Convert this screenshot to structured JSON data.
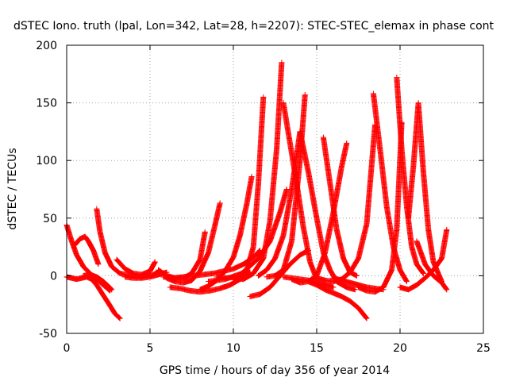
{
  "chart_data": {
    "type": "scatter",
    "title": "dSTEC Iono. truth (lpal, Lon=342, Lat=28, h=2207): STEC-STEC_elemax in phase cont",
    "xlabel": "GPS time / hours of day 356 of year 2014",
    "ylabel": "dSTEC  / TECUs",
    "xlim": [
      0,
      25
    ],
    "ylim": [
      -50,
      200
    ],
    "xticks": [
      "0",
      "5",
      "10",
      "15",
      "20",
      "25"
    ],
    "yticks": [
      "-50",
      "0",
      "50",
      "100",
      "150",
      "200"
    ],
    "grid": true,
    "marker": "+",
    "color": "#ff0000",
    "series": [
      {
        "x": [
          0,
          0.3,
          0.6,
          1.0,
          1.4,
          1.8,
          2.2,
          2.6
        ],
        "y": [
          44,
          30,
          18,
          8,
          2,
          -3,
          -8,
          -13
        ]
      },
      {
        "x": [
          0,
          0.3,
          0.6,
          0.9,
          1.2,
          1.5,
          1.8,
          2.2,
          2.6,
          2.9,
          3.2
        ],
        "y": [
          -1,
          -2,
          -3,
          -2,
          -1,
          -3,
          -8,
          -17,
          -26,
          -33,
          -37
        ]
      },
      {
        "x": [
          0.5,
          0.8,
          1.1,
          1.3,
          1.6,
          1.9
        ],
        "y": [
          27,
          32,
          34,
          30,
          22,
          10
        ]
      },
      {
        "x": [
          1.8,
          2.0,
          2.3,
          2.7,
          3.2,
          3.8,
          4.5,
          5.2,
          5.6
        ],
        "y": [
          58,
          38,
          20,
          8,
          2,
          0,
          -1,
          1,
          4
        ]
      },
      {
        "x": [
          1.0,
          1.4,
          1.8,
          2.2,
          2.5,
          2.7
        ],
        "y": [
          0,
          1,
          -1,
          -5,
          -9,
          -12
        ]
      },
      {
        "x": [
          3.0,
          3.5,
          4.0,
          4.5,
          5.0,
          5.3
        ],
        "y": [
          14,
          6,
          2,
          1,
          4,
          12
        ]
      },
      {
        "x": [
          5.5,
          6.0,
          6.5,
          7.0,
          7.5,
          8.0,
          8.3
        ],
        "y": [
          5,
          0,
          -2,
          -2,
          2,
          14,
          38
        ]
      },
      {
        "x": [
          6.0,
          6.5,
          7.0,
          7.5,
          8.0,
          8.5,
          8.9,
          9.2
        ],
        "y": [
          -2,
          -5,
          -6,
          -4,
          4,
          20,
          44,
          63
        ]
      },
      {
        "x": [
          6.2,
          6.8,
          7.4,
          8.0,
          8.6,
          9.2,
          9.8,
          10.4,
          11.0
        ],
        "y": [
          -10,
          -11,
          -13,
          -14,
          -13,
          -11,
          -8,
          -3,
          3
        ]
      },
      {
        "x": [
          8.0,
          8.5,
          9.0,
          9.5,
          10.0,
          10.4,
          10.8,
          11.1
        ],
        "y": [
          -12,
          -9,
          -4,
          4,
          16,
          35,
          62,
          86
        ]
      },
      {
        "x": [
          9.0,
          9.6,
          10.2,
          10.8,
          11.2,
          11.5,
          11.8
        ],
        "y": [
          -1,
          -2,
          -1,
          5,
          25,
          80,
          155
        ]
      },
      {
        "x": [
          10.0,
          10.6,
          11.2,
          11.8,
          12.2,
          12.6,
          12.9
        ],
        "y": [
          -2,
          -3,
          2,
          15,
          48,
          110,
          185
        ]
      },
      {
        "x": [
          11.0,
          11.6,
          12.2,
          12.8,
          13.4,
          14.0,
          14.5
        ],
        "y": [
          -18,
          -16,
          -10,
          0,
          10,
          18,
          22
        ]
      },
      {
        "x": [
          8.5,
          9.5,
          10.5,
          11.5,
          12.2,
          12.8,
          13.2
        ],
        "y": [
          -5,
          -3,
          2,
          15,
          30,
          55,
          75
        ]
      },
      {
        "x": [
          12.0,
          12.5,
          13.0,
          13.5,
          14.0,
          14.3
        ],
        "y": [
          -1,
          0,
          5,
          30,
          100,
          157
        ]
      },
      {
        "x": [
          13.0,
          13.4,
          13.8,
          14.2,
          14.6,
          15.0
        ],
        "y": [
          150,
          115,
          80,
          42,
          12,
          -3
        ]
      },
      {
        "x": [
          13.5,
          14.0,
          14.5,
          15.0,
          15.5,
          16.0,
          16.5,
          16.8
        ],
        "y": [
          -3,
          -6,
          -5,
          0,
          20,
          55,
          95,
          115
        ]
      },
      {
        "x": [
          14.0,
          14.5,
          15.0,
          15.4,
          15.8,
          16.2,
          16.8,
          17.3
        ],
        "y": [
          125,
          90,
          50,
          20,
          5,
          -5,
          -10,
          -12
        ]
      },
      {
        "x": [
          14.5,
          15.0,
          15.5,
          16.0,
          16.5,
          17.0,
          17.5,
          18.0
        ],
        "y": [
          -5,
          -8,
          -12,
          -15,
          -18,
          -22,
          -28,
          -37
        ]
      },
      {
        "x": [
          15.0,
          15.5,
          16.0,
          16.5,
          17.0,
          17.5,
          18.0,
          18.5
        ],
        "y": [
          -2,
          -4,
          -5,
          -3,
          3,
          15,
          45,
          131
        ]
      },
      {
        "x": [
          15.4,
          15.8,
          16.2,
          16.6,
          17.0,
          17.4
        ],
        "y": [
          120,
          80,
          40,
          15,
          3,
          0
        ]
      },
      {
        "x": [
          17.5,
          18.0,
          18.5,
          19.0,
          19.5,
          19.8,
          20.1
        ],
        "y": [
          -10,
          -13,
          -14,
          -10,
          5,
          40,
          133
        ]
      },
      {
        "x": [
          18.4,
          18.8,
          19.2,
          19.6,
          20.0,
          20.4
        ],
        "y": [
          158,
          110,
          60,
          25,
          5,
          -5
        ]
      },
      {
        "x": [
          19.8,
          20.1,
          20.4,
          20.7,
          21.0,
          21.4
        ],
        "y": [
          172,
          110,
          60,
          25,
          10,
          2
        ]
      },
      {
        "x": [
          20.0,
          20.5,
          21.0,
          21.5,
          22.0,
          22.5,
          22.8
        ],
        "y": [
          -10,
          -12,
          -8,
          -2,
          5,
          15,
          40
        ]
      },
      {
        "x": [
          20.5,
          20.8,
          21.1,
          21.4,
          21.7,
          22.0,
          22.5
        ],
        "y": [
          50,
          95,
          150,
          90,
          40,
          12,
          -5
        ]
      },
      {
        "x": [
          21.0,
          21.5,
          22.0,
          22.5,
          22.8
        ],
        "y": [
          30,
          10,
          0,
          -6,
          -12
        ]
      },
      {
        "x": [
          5.8,
          6.4,
          7.0,
          7.6,
          8.2,
          8.8,
          9.4,
          10.0,
          10.6,
          11.2,
          11.6
        ],
        "y": [
          -1,
          -2,
          -1,
          0,
          1,
          2,
          4,
          6,
          10,
          16,
          22
        ]
      },
      {
        "x": [
          16.0,
          16.5,
          17.0,
          17.5,
          18.0,
          18.5,
          19.0
        ],
        "y": [
          -2,
          -4,
          -6,
          -8,
          -10,
          -11,
          -12
        ]
      },
      {
        "x": [
          3.5,
          4.0,
          4.5,
          5.0,
          5.5,
          6.0
        ],
        "y": [
          -1,
          -2,
          -2,
          -1,
          1,
          3
        ]
      },
      {
        "x": [
          11.5,
          12.0,
          12.5,
          13.0,
          13.5,
          14.0
        ],
        "y": [
          0,
          5,
          15,
          35,
          75,
          125
        ]
      },
      {
        "x": [
          13.0,
          13.5,
          14.0,
          14.5,
          15.0,
          15.5,
          16.0
        ],
        "y": [
          -1,
          -2,
          -3,
          -4,
          -6,
          -8,
          -10
        ]
      }
    ]
  }
}
